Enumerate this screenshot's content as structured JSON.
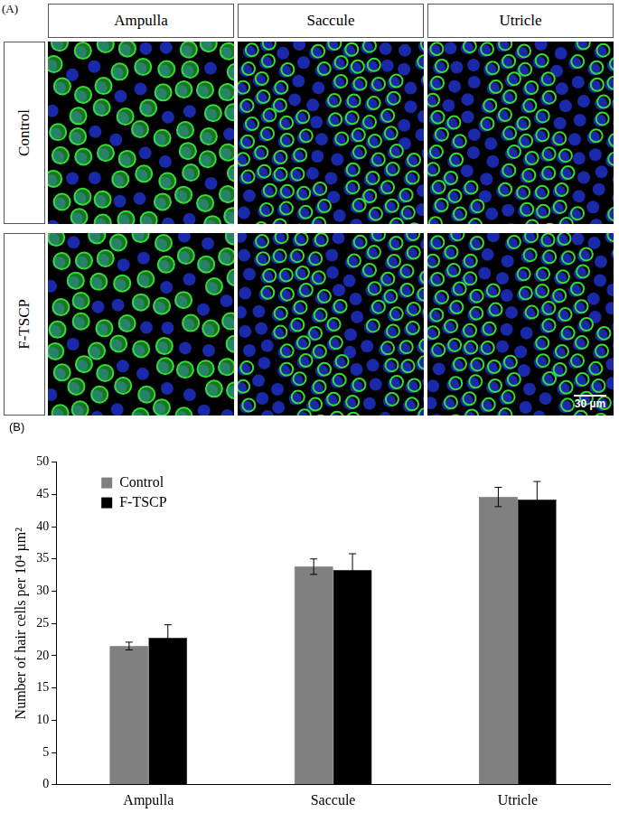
{
  "panel_a": {
    "label": "(A)",
    "columns": [
      "Ampulla",
      "Saccule",
      "Utricle"
    ],
    "rows": [
      "Control",
      "F-TSCP"
    ],
    "scale_bar": "30 µm"
  },
  "chart_data": {
    "type": "bar",
    "title": "(B)",
    "categories": [
      "Ampulla",
      "Saccule",
      "Utricle"
    ],
    "series": [
      {
        "name": "Control",
        "color": "#808080",
        "values": [
          21.5,
          33.8,
          44.6
        ],
        "errors": [
          0.6,
          1.2,
          1.5
        ]
      },
      {
        "name": "F-TSCP",
        "color": "#000000",
        "values": [
          22.8,
          33.3,
          44.2
        ],
        "errors": [
          2.0,
          2.5,
          2.8
        ]
      }
    ],
    "y_label": "Number of hair cells per 10⁴ µm²",
    "ylim": [
      0,
      50
    ],
    "yticks": [
      0,
      5,
      10,
      15,
      20,
      25,
      30,
      35,
      40,
      45,
      50
    ],
    "grid": false,
    "legend": "upper left"
  }
}
